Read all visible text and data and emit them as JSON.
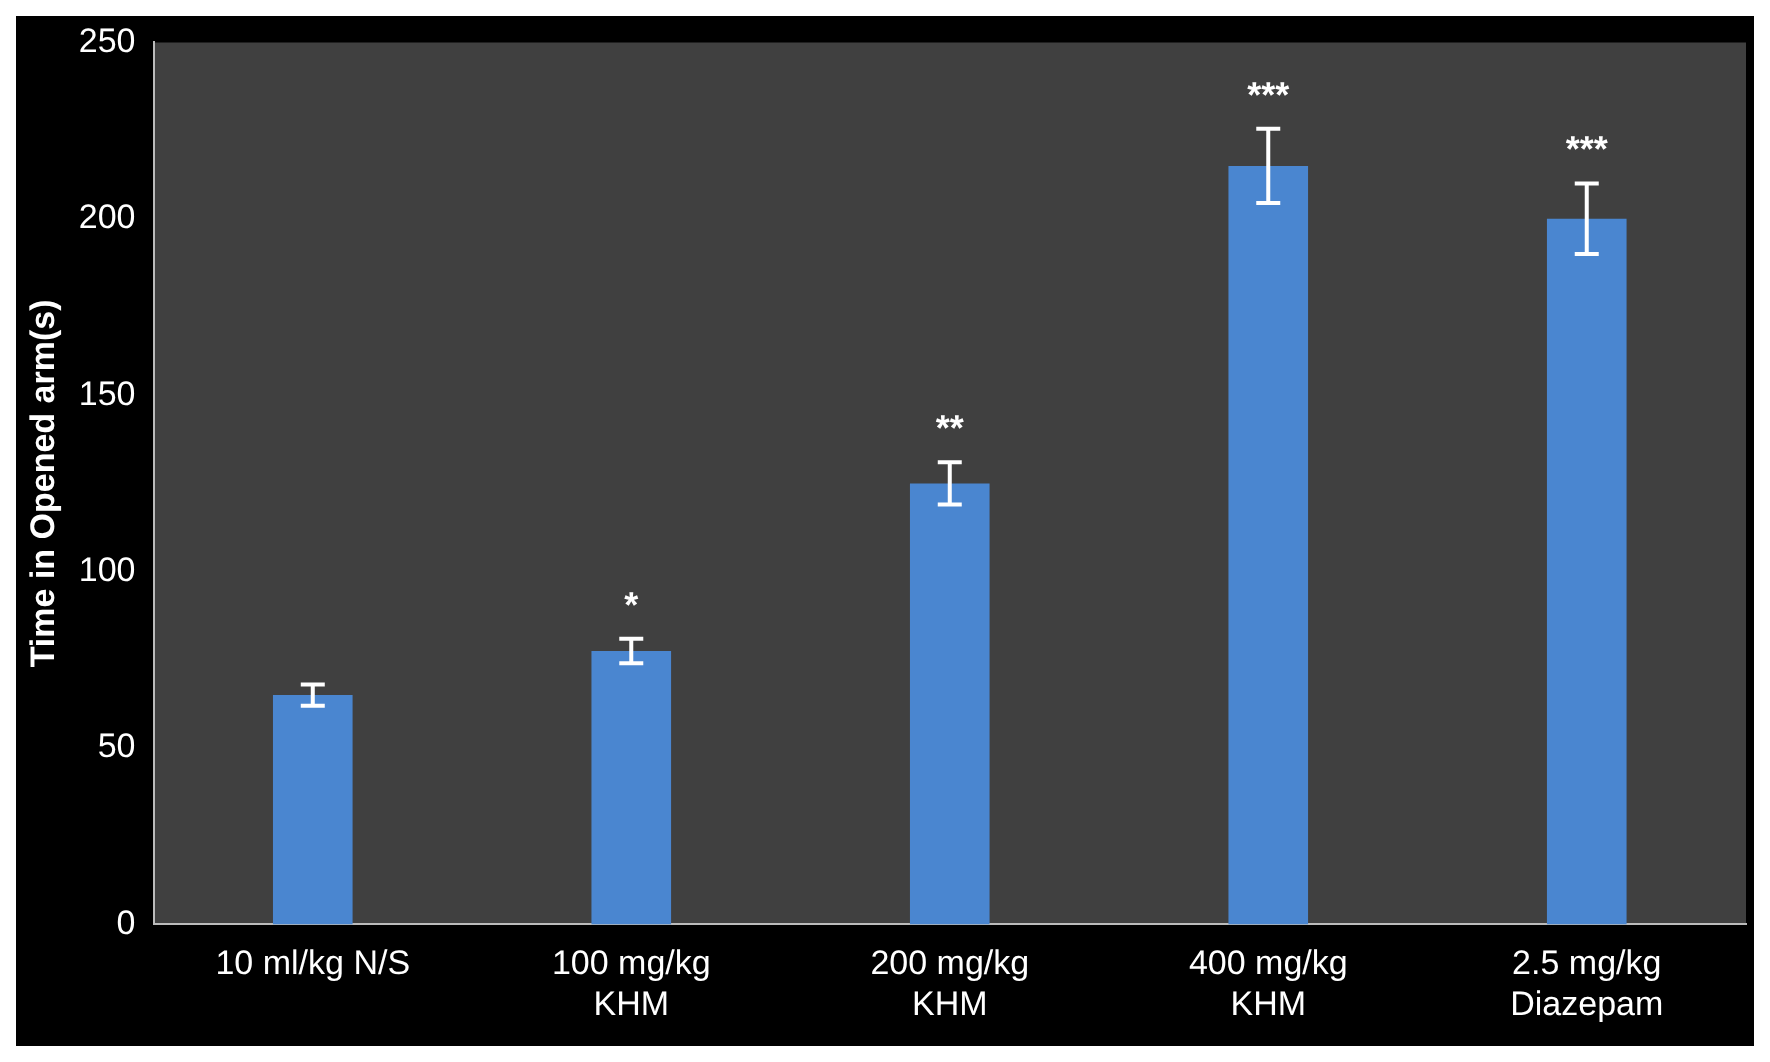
{
  "chart_data": {
    "type": "bar",
    "ylabel": "Time in Opened arm(s)",
    "categories": [
      "10 ml/kg N/S",
      "100 mg/kg\nKHM",
      "200 mg/kg\nKHM",
      "400 mg/kg\nKHM",
      "2.5 mg/kg\nDiazepam"
    ],
    "values": [
      65,
      77.5,
      125,
      215,
      200
    ],
    "errors": [
      3,
      3.5,
      6,
      10.5,
      10
    ],
    "color": "#4a86d0",
    "ylim": [
      0,
      250
    ],
    "yticks": [
      0,
      50,
      100,
      150,
      200,
      250
    ],
    "grid": false,
    "legend": false,
    "annotations": [
      {
        "text": "*",
        "x": "100 mg/kg\nKHM",
        "y": 77.5
      },
      {
        "text": "**",
        "x": "200 mg/kg\nKHM",
        "y": 125
      },
      {
        "text": "***",
        "x": "400 mg/kg\nKHM",
        "y": 215
      },
      {
        "text": "***",
        "x": "2.5 mg/kg\nDiazepam",
        "y": 200
      }
    ]
  }
}
